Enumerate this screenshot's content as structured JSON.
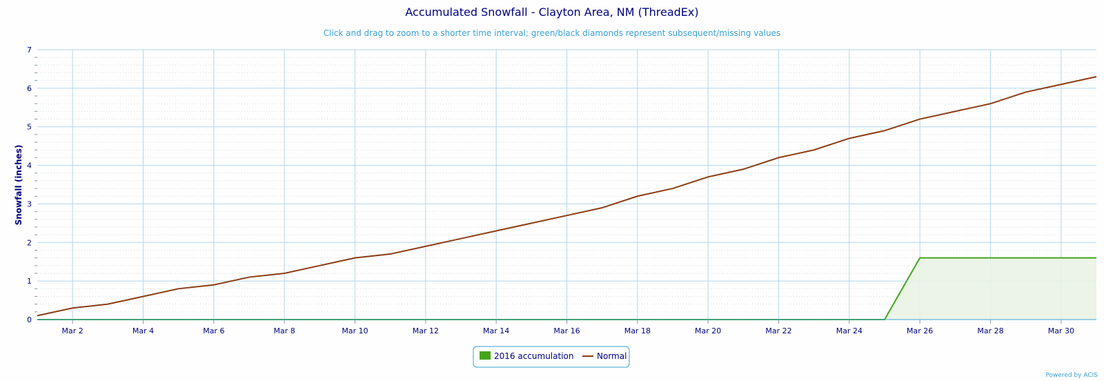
{
  "title": "Accumulated Snowfall - Clayton Area, NM (ThreadEx)",
  "subtitle": "Click and drag to zoom to a shorter time interval; green/black diamonds represent subsequent/missing values",
  "credits": "Powered by ACIS",
  "colors": {
    "accumulation": "#44a51c",
    "accumulation_fill": "#e9f3e4",
    "normal": "#8b3c14",
    "grid": "#b3d7ef",
    "minor_grid": "#d8dde0",
    "text": "#000080",
    "subtitle": "#3ba1d6"
  },
  "chart_data": {
    "type": "line",
    "title": "Accumulated Snowfall - Clayton Area, NM (ThreadEx)",
    "ylabel": "Snowfall (inches)",
    "xlabel": "",
    "ylim": [
      0,
      7
    ],
    "yticks": [
      0,
      1,
      2,
      3,
      4,
      5,
      6,
      7
    ],
    "x": [
      "Mar 1",
      "Mar 2",
      "Mar 3",
      "Mar 4",
      "Mar 5",
      "Mar 6",
      "Mar 7",
      "Mar 8",
      "Mar 9",
      "Mar 10",
      "Mar 11",
      "Mar 12",
      "Mar 13",
      "Mar 14",
      "Mar 15",
      "Mar 16",
      "Mar 17",
      "Mar 18",
      "Mar 19",
      "Mar 20",
      "Mar 21",
      "Mar 22",
      "Mar 23",
      "Mar 24",
      "Mar 25",
      "Mar 26",
      "Mar 27",
      "Mar 28",
      "Mar 29",
      "Mar 30",
      "Mar 31"
    ],
    "xticks": [
      "Mar 2",
      "Mar 4",
      "Mar 6",
      "Mar 8",
      "Mar 10",
      "Mar 12",
      "Mar 14",
      "Mar 16",
      "Mar 18",
      "Mar 20",
      "Mar 22",
      "Mar 24",
      "Mar 26",
      "Mar 28",
      "Mar 30"
    ],
    "grid": true,
    "legend": "bottom-center",
    "series": [
      {
        "name": "2016 accumulation",
        "type": "area",
        "values": [
          0,
          0,
          0,
          0,
          0,
          0,
          0,
          0,
          0,
          0,
          0,
          0,
          0,
          0,
          0,
          0,
          0,
          0,
          0,
          0,
          0,
          0,
          0,
          0,
          0,
          1.6,
          1.6,
          1.6,
          1.6,
          1.6,
          1.6
        ]
      },
      {
        "name": "Normal",
        "type": "line",
        "values": [
          0.1,
          0.3,
          0.4,
          0.6,
          0.8,
          0.9,
          1.1,
          1.2,
          1.4,
          1.6,
          1.7,
          1.9,
          2.1,
          2.3,
          2.5,
          2.7,
          2.9,
          3.2,
          3.4,
          3.7,
          3.9,
          4.2,
          4.4,
          4.7,
          4.9,
          5.2,
          5.4,
          5.6,
          5.9,
          6.1,
          6.3
        ]
      }
    ]
  }
}
